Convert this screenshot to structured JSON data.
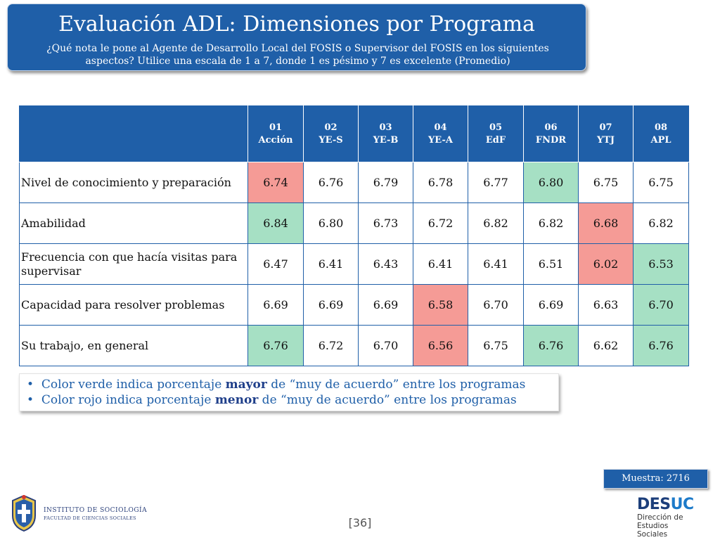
{
  "title": "Evaluación ADL: Dimensiones por Programa",
  "subtitle": "¿Qué nota le pone al Agente de Desarrollo Local del FOSIS o Supervisor del FOSIS en los siguientes aspectos? Utilice una escala de 1 a 7, donde 1 es pésimo y 7 es excelente (Promedio)",
  "columns": [
    {
      "code": "01",
      "name": "Acción"
    },
    {
      "code": "02",
      "name": "YE-S"
    },
    {
      "code": "03",
      "name": "YE-B"
    },
    {
      "code": "04",
      "name": "YE-A"
    },
    {
      "code": "05",
      "name": "EdF"
    },
    {
      "code": "06",
      "name": "FNDR"
    },
    {
      "code": "07",
      "name": "YTJ"
    },
    {
      "code": "08",
      "name": "APL"
    }
  ],
  "rows": [
    {
      "label": "Nivel de conocimiento y preparación",
      "values": [
        "6.74",
        "6.76",
        "6.79",
        "6.78",
        "6.77",
        "6.80",
        "6.75",
        "6.75"
      ],
      "highlight": [
        "red",
        "",
        "",
        "",
        "",
        "green",
        "",
        ""
      ]
    },
    {
      "label": "Amabilidad",
      "values": [
        "6.84",
        "6.80",
        "6.73",
        "6.72",
        "6.82",
        "6.82",
        "6.68",
        "6.82"
      ],
      "highlight": [
        "green",
        "",
        "",
        "",
        "",
        "",
        "red",
        ""
      ]
    },
    {
      "label": "Frecuencia con que hacía visitas para supervisar",
      "values": [
        "6.47",
        "6.41",
        "6.43",
        "6.41",
        "6.41",
        "6.51",
        "6.02",
        "6.53"
      ],
      "highlight": [
        "",
        "",
        "",
        "",
        "",
        "",
        "red",
        "green"
      ]
    },
    {
      "label": "Capacidad para resolver problemas",
      "values": [
        "6.69",
        "6.69",
        "6.69",
        "6.58",
        "6.70",
        "6.69",
        "6.63",
        "6.70"
      ],
      "highlight": [
        "",
        "",
        "",
        "red",
        "",
        "",
        "",
        "green"
      ]
    },
    {
      "label": "Su trabajo, en general",
      "values": [
        "6.76",
        "6.72",
        "6.70",
        "6.56",
        "6.75",
        "6.76",
        "6.62",
        "6.76"
      ],
      "highlight": [
        "green",
        "",
        "",
        "red",
        "",
        "green",
        "",
        "green"
      ]
    }
  ],
  "legend": {
    "line1_pre": "Color verde indica porcentaje ",
    "line1_bold": "mayor",
    "line1_post": " de “muy de acuerdo” entre los programas",
    "line2_pre": "Color rojo indica porcentaje ",
    "line2_bold": "menor",
    "line2_post": " de “muy de acuerdo” entre los programas"
  },
  "sample": "Muestra: 2716",
  "page_number": "[36]",
  "institute": {
    "name": "INSTITUTO DE SOCIOLOGÍA",
    "faculty": "FACULTAD DE CIENCIAS SOCIALES"
  },
  "desuc": {
    "logo_a": "DES",
    "logo_b": "UC",
    "line1": "Dirección de Estudios",
    "line2": "Sociales"
  },
  "colors": {
    "brand_blue": "#1f5fa8",
    "green_highlight": "#a6e0c4",
    "red_highlight": "#f59b96"
  }
}
